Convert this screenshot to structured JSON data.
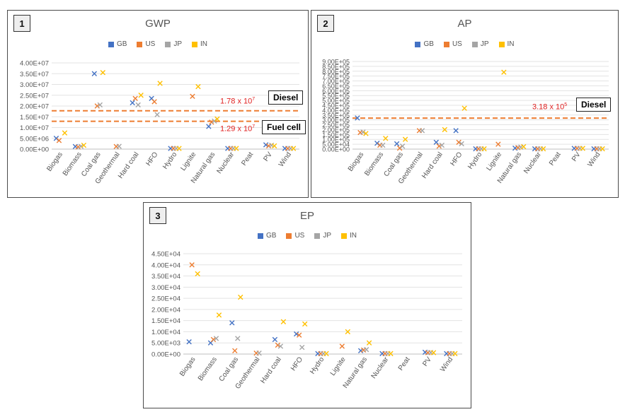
{
  "series_colors": {
    "GB": "#4472C4",
    "US": "#ED7D31",
    "JP": "#A5A5A5",
    "IN": "#FFC000"
  },
  "chart_data": [
    {
      "id": "p1",
      "type": "scatter",
      "panel_number": "1",
      "title": "GWP",
      "legend": [
        "GB",
        "US",
        "JP",
        "IN"
      ],
      "categories": [
        "Biogas",
        "Biomass",
        "Coal gas",
        "Geothermal",
        "Hard coal",
        "HFO",
        "Hydro",
        "Lignite",
        "Natural gas",
        "Nuclear",
        "Peat",
        "PV",
        "Wind"
      ],
      "yticks": [
        "0.00E+00",
        "5.00E+06",
        "1.00E+07",
        "1.50E+07",
        "2.00E+07",
        "2.50E+07",
        "3.00E+07",
        "3.50E+07",
        "4.00E+07"
      ],
      "ylim": [
        0,
        40000000
      ],
      "points": [
        [
          "Biogas",
          0,
          5000000
        ],
        [
          "Biogas",
          1,
          4000000
        ],
        [
          "Biogas",
          3,
          7500000
        ],
        [
          "Biomass",
          0,
          1200000
        ],
        [
          "Biomass",
          1,
          1000000
        ],
        [
          "Biomass",
          2,
          1300000
        ],
        [
          "Biomass",
          3,
          1800000
        ],
        [
          "Coal gas",
          0,
          35000000
        ],
        [
          "Coal gas",
          1,
          20000000
        ],
        [
          "Coal gas",
          2,
          20500000
        ],
        [
          "Coal gas",
          3,
          35500000
        ],
        [
          "Geothermal",
          1,
          1200000
        ],
        [
          "Geothermal",
          2,
          1300000
        ],
        [
          "Hard coal",
          0,
          21500000
        ],
        [
          "Hard coal",
          1,
          23500000
        ],
        [
          "Hard coal",
          2,
          20500000
        ],
        [
          "Hard coal",
          3,
          25000000
        ],
        [
          "HFO",
          0,
          23500000
        ],
        [
          "HFO",
          1,
          22000000
        ],
        [
          "HFO",
          2,
          16000000
        ],
        [
          "HFO",
          3,
          30500000
        ],
        [
          "Hydro",
          0,
          300000
        ],
        [
          "Hydro",
          1,
          300000
        ],
        [
          "Hydro",
          2,
          300000
        ],
        [
          "Hydro",
          3,
          300000
        ],
        [
          "Lignite",
          1,
          24500000
        ],
        [
          "Lignite",
          3,
          29000000
        ],
        [
          "Natural gas",
          0,
          10500000
        ],
        [
          "Natural gas",
          1,
          12500000
        ],
        [
          "Natural gas",
          2,
          13000000
        ],
        [
          "Natural gas",
          3,
          14000000
        ],
        [
          "Nuclear",
          0,
          300000
        ],
        [
          "Nuclear",
          1,
          300000
        ],
        [
          "Nuclear",
          2,
          300000
        ],
        [
          "Nuclear",
          3,
          300000
        ],
        [
          "PV",
          0,
          2000000
        ],
        [
          "PV",
          1,
          1500000
        ],
        [
          "PV",
          2,
          1800000
        ],
        [
          "PV",
          3,
          1500000
        ],
        [
          "Wind",
          0,
          300000
        ],
        [
          "Wind",
          1,
          300000
        ],
        [
          "Wind",
          2,
          300000
        ],
        [
          "Wind",
          3,
          300000
        ]
      ],
      "reference_lines": [
        {
          "value": 17800000,
          "label_mantissa": "1.78 x 10",
          "label_exp": "7",
          "box": "Diesel"
        },
        {
          "value": 12900000,
          "label_mantissa": "1.29 x 10",
          "label_exp": "7",
          "box": "Fuel cell"
        }
      ]
    },
    {
      "id": "p2",
      "type": "scatter",
      "panel_number": "2",
      "title": "AP",
      "legend": [
        "GB",
        "US",
        "JP",
        "IN"
      ],
      "categories": [
        "Biogas",
        "Biomass",
        "Coal gas",
        "Geothermal",
        "Hard coal",
        "HFO",
        "Hydro",
        "Lignite",
        "Natural gas",
        "Nuclear",
        "Peat",
        "PV",
        "Wind"
      ],
      "yticks": [
        "0.00E+00",
        "5.00E+04",
        "1.00E+05",
        "1.50E+05",
        "2.00E+05",
        "2.50E+05",
        "3.00E+05",
        "3.50E+05",
        "4.00E+05",
        "4.50E+05",
        "5.00E+05",
        "5.50E+05",
        "6.00E+05",
        "6.50E+05",
        "7.00E+05",
        "7.50E+05",
        "8.00E+05",
        "8.50E+05",
        "9.00E+05"
      ],
      "ylim": [
        0,
        900000
      ],
      "points": [
        [
          "Biogas",
          0,
          320000
        ],
        [
          "Biogas",
          1,
          170000
        ],
        [
          "Biogas",
          2,
          175000
        ],
        [
          "Biogas",
          3,
          160000
        ],
        [
          "Biomass",
          0,
          60000
        ],
        [
          "Biomass",
          1,
          40000
        ],
        [
          "Biomass",
          2,
          40000
        ],
        [
          "Biomass",
          3,
          110000
        ],
        [
          "Coal gas",
          0,
          55000
        ],
        [
          "Coal gas",
          1,
          10000
        ],
        [
          "Coal gas",
          2,
          30000
        ],
        [
          "Coal gas",
          3,
          100000
        ],
        [
          "Geothermal",
          1,
          190000
        ],
        [
          "Geothermal",
          2,
          190000
        ],
        [
          "Hard coal",
          0,
          70000
        ],
        [
          "Hard coal",
          1,
          30000
        ],
        [
          "Hard coal",
          2,
          40000
        ],
        [
          "Hard coal",
          3,
          200000
        ],
        [
          "HFO",
          0,
          190000
        ],
        [
          "HFO",
          1,
          70000
        ],
        [
          "HFO",
          2,
          55000
        ],
        [
          "HFO",
          3,
          420000
        ],
        [
          "Hydro",
          0,
          3000
        ],
        [
          "Hydro",
          1,
          3000
        ],
        [
          "Hydro",
          2,
          3000
        ],
        [
          "Hydro",
          3,
          3000
        ],
        [
          "Lignite",
          1,
          50000
        ],
        [
          "Lignite",
          3,
          790000
        ],
        [
          "Natural gas",
          0,
          10000
        ],
        [
          "Natural gas",
          1,
          15000
        ],
        [
          "Natural gas",
          2,
          20000
        ],
        [
          "Natural gas",
          3,
          25000
        ],
        [
          "Nuclear",
          0,
          3000
        ],
        [
          "Nuclear",
          1,
          3000
        ],
        [
          "Nuclear",
          2,
          3000
        ],
        [
          "Nuclear",
          3,
          3000
        ],
        [
          "PV",
          0,
          8000
        ],
        [
          "PV",
          1,
          8000
        ],
        [
          "PV",
          2,
          8000
        ],
        [
          "PV",
          3,
          8000
        ],
        [
          "Wind",
          0,
          3000
        ],
        [
          "Wind",
          1,
          3000
        ],
        [
          "Wind",
          2,
          3000
        ],
        [
          "Wind",
          3,
          3000
        ]
      ],
      "reference_lines": [
        {
          "value": 318000,
          "label_mantissa": "3.18 x 10",
          "label_exp": "5",
          "box": "Diesel"
        }
      ]
    },
    {
      "id": "p3",
      "type": "scatter",
      "panel_number": "3",
      "title": "EP",
      "legend": [
        "GB",
        "US",
        "JP",
        "IN"
      ],
      "categories": [
        "Biogas",
        "Biomass",
        "Coal gas",
        "Geothermal",
        "Hard coal",
        "HFO",
        "Hydro",
        "Lignite",
        "Natural gas",
        "Nuclear",
        "Peat",
        "PV",
        "Wind"
      ],
      "yticks": [
        "0.00E+00",
        "5.00E+03",
        "1.00E+04",
        "1.50E+04",
        "2.00E+04",
        "2.50E+04",
        "3.00E+04",
        "3.50E+04",
        "4.00E+04",
        "4.50E+04"
      ],
      "ylim": [
        0,
        45000
      ],
      "points": [
        [
          "Biogas",
          0,
          5500
        ],
        [
          "Biogas",
          1,
          40000
        ],
        [
          "Biogas",
          3,
          36000
        ],
        [
          "Biomass",
          0,
          5000
        ],
        [
          "Biomass",
          1,
          6500
        ],
        [
          "Biomass",
          2,
          7000
        ],
        [
          "Biomass",
          3,
          17500
        ],
        [
          "Coal gas",
          0,
          14000
        ],
        [
          "Coal gas",
          1,
          1500
        ],
        [
          "Coal gas",
          2,
          7000
        ],
        [
          "Coal gas",
          3,
          25500
        ],
        [
          "Geothermal",
          1,
          400
        ],
        [
          "Geothermal",
          2,
          400
        ],
        [
          "Hard coal",
          0,
          6500
        ],
        [
          "Hard coal",
          1,
          4000
        ],
        [
          "Hard coal",
          2,
          3500
        ],
        [
          "Hard coal",
          3,
          14500
        ],
        [
          "HFO",
          0,
          9000
        ],
        [
          "HFO",
          1,
          8500
        ],
        [
          "HFO",
          2,
          3000
        ],
        [
          "HFO",
          3,
          13500
        ],
        [
          "Hydro",
          0,
          200
        ],
        [
          "Hydro",
          1,
          200
        ],
        [
          "Hydro",
          2,
          200
        ],
        [
          "Hydro",
          3,
          200
        ],
        [
          "Lignite",
          1,
          3500
        ],
        [
          "Lignite",
          3,
          10000
        ],
        [
          "Natural gas",
          0,
          1500
        ],
        [
          "Natural gas",
          1,
          1800
        ],
        [
          "Natural gas",
          2,
          2000
        ],
        [
          "Natural gas",
          3,
          5000
        ],
        [
          "Nuclear",
          0,
          200
        ],
        [
          "Nuclear",
          1,
          200
        ],
        [
          "Nuclear",
          2,
          200
        ],
        [
          "Nuclear",
          3,
          200
        ],
        [
          "PV",
          0,
          800
        ],
        [
          "PV",
          1,
          600
        ],
        [
          "PV",
          2,
          700
        ],
        [
          "PV",
          3,
          600
        ],
        [
          "Wind",
          0,
          200
        ],
        [
          "Wind",
          1,
          200
        ],
        [
          "Wind",
          2,
          200
        ],
        [
          "Wind",
          3,
          200
        ]
      ],
      "reference_lines": []
    }
  ]
}
